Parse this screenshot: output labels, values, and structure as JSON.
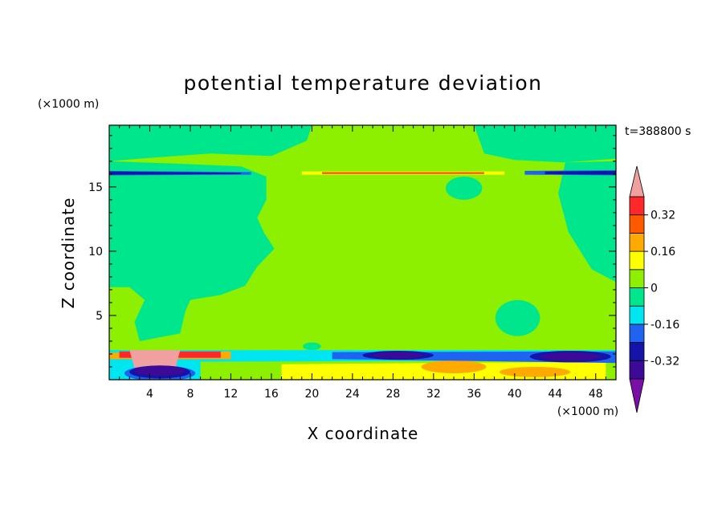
{
  "chart_data": {
    "type": "heatmap",
    "title": "potential temperature deviation",
    "xlabel": "X coordinate",
    "ylabel": "Z coordinate",
    "x_unit": "(×1000 m)",
    "y_unit": "(×1000 m)",
    "time_label": "t=388800 s",
    "xlim": [
      0,
      50
    ],
    "ylim": [
      0,
      19.8
    ],
    "x_ticks": [
      4,
      8,
      12,
      16,
      20,
      24,
      28,
      32,
      36,
      40,
      44,
      48
    ],
    "y_ticks": [
      5,
      10,
      15
    ],
    "colorbar": {
      "levels": [
        -0.4,
        -0.32,
        -0.24,
        -0.16,
        -0.08,
        0,
        0.08,
        0.16,
        0.24,
        0.32,
        0.4
      ],
      "tick_values": [
        0.32,
        0.16,
        0,
        -0.16,
        -0.32
      ],
      "tick_labels": [
        "0.32",
        "0.16",
        "0",
        "-0.16",
        "-0.32"
      ],
      "colors": {
        "below_min": "#7a0fa8",
        "b1": "#3c0a96",
        "b2": "#1414a8",
        "b3": "#1e64f0",
        "b4": "#00e6f0",
        "b5": "#00e68c",
        "b6": "#8cf000",
        "b7": "#ffff00",
        "b8": "#ffaa00",
        "b9": "#ff5a00",
        "b10": "#ff2828",
        "above_max": "#f0a0a0"
      }
    },
    "background_value_band": "b6",
    "regions_description": [
      {
        "value_band": "b5",
        "x": [
          0,
          50
        ],
        "z": [
          17.5,
          19.8
        ]
      },
      {
        "value_band": "b6",
        "x": [
          0,
          50
        ],
        "z": [
          2.5,
          17
        ]
      },
      {
        "value_band": "b2",
        "x": [
          0,
          14
        ],
        "z": [
          15.9,
          16.2
        ]
      },
      {
        "value_band": "b10",
        "x": [
          19,
          39
        ],
        "z": [
          15.9,
          16.2
        ]
      },
      {
        "value_band": "b2",
        "x": [
          42,
          50
        ],
        "z": [
          15.9,
          16.2
        ]
      },
      {
        "value_band": "above_max",
        "x": [
          2,
          7
        ],
        "z": [
          1.2,
          2.3
        ]
      },
      {
        "value_band": "b1",
        "x": [
          1,
          9
        ],
        "z": [
          0.3,
          1.5
        ]
      },
      {
        "value_band": "b7",
        "x": [
          18,
          48
        ],
        "z": [
          0.1,
          1.5
        ]
      },
      {
        "value_band": "b1",
        "x": [
          26,
          32
        ],
        "z": [
          1.5,
          2.2
        ]
      },
      {
        "value_band": "b1",
        "x": [
          42,
          48
        ],
        "z": [
          1.5,
          2.2
        ]
      }
    ]
  }
}
